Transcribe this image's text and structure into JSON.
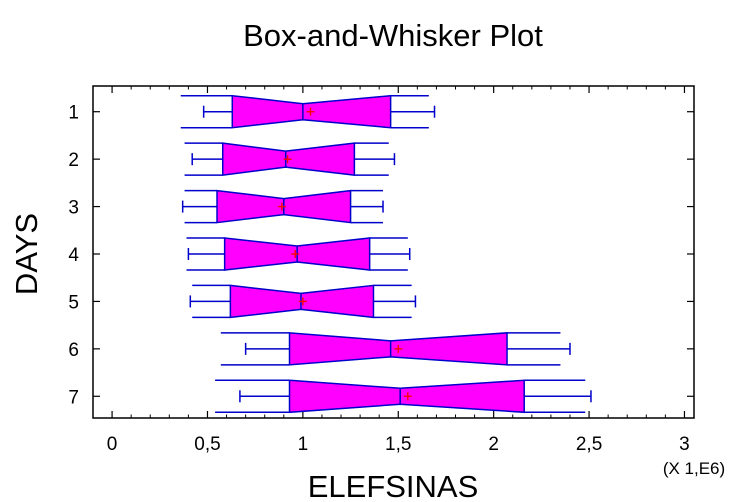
{
  "chart_data": {
    "type": "box",
    "title": "Box-and-Whisker Plot",
    "xlabel": "ELEFSINAS",
    "ylabel": "DAYS",
    "x_multiplier": "(X 1,E6)",
    "xlim": [
      -0.1,
      3.05
    ],
    "xticks": [
      0,
      0.5,
      1,
      1.5,
      2,
      2.5,
      3
    ],
    "xtick_labels": [
      "0",
      "0,5",
      "1",
      "1,5",
      "2",
      "2,5",
      "3"
    ],
    "categories": [
      "1",
      "2",
      "3",
      "4",
      "5",
      "6",
      "7"
    ],
    "boxes": [
      {
        "label": "1",
        "whisker_low": 0.48,
        "q1": 0.63,
        "median": 1.0,
        "q3": 1.46,
        "whisker_high": 1.69,
        "mean": 1.04,
        "notch_low": 0.36,
        "notch_high": 1.66
      },
      {
        "label": "2",
        "whisker_low": 0.42,
        "q1": 0.58,
        "median": 0.91,
        "q3": 1.27,
        "whisker_high": 1.48,
        "mean": 0.92,
        "notch_low": 0.38,
        "notch_high": 1.45
      },
      {
        "label": "3",
        "whisker_low": 0.37,
        "q1": 0.55,
        "median": 0.9,
        "q3": 1.25,
        "whisker_high": 1.42,
        "mean": 0.89,
        "notch_low": 0.38,
        "notch_high": 1.42
      },
      {
        "label": "4",
        "whisker_low": 0.4,
        "q1": 0.59,
        "median": 0.97,
        "q3": 1.35,
        "whisker_high": 1.56,
        "mean": 0.96,
        "notch_low": 0.39,
        "notch_high": 1.55
      },
      {
        "label": "5",
        "whisker_low": 0.41,
        "q1": 0.62,
        "median": 0.99,
        "q3": 1.37,
        "whisker_high": 1.59,
        "mean": 1.0,
        "notch_low": 0.42,
        "notch_high": 1.57
      },
      {
        "label": "6",
        "whisker_low": 0.7,
        "q1": 0.93,
        "median": 1.46,
        "q3": 2.07,
        "whisker_high": 2.4,
        "mean": 1.5,
        "notch_low": 0.57,
        "notch_high": 2.35
      },
      {
        "label": "7",
        "whisker_low": 0.67,
        "q1": 0.93,
        "median": 1.51,
        "q3": 2.16,
        "whisker_high": 2.51,
        "mean": 1.55,
        "notch_low": 0.54,
        "notch_high": 2.48
      }
    ],
    "colors": {
      "box_fill": "#ff00ff",
      "box_stroke": "#0000cc",
      "mean_marker": "#ff0000",
      "axis": "#000000"
    },
    "grid": false,
    "orientation": "horizontal"
  }
}
